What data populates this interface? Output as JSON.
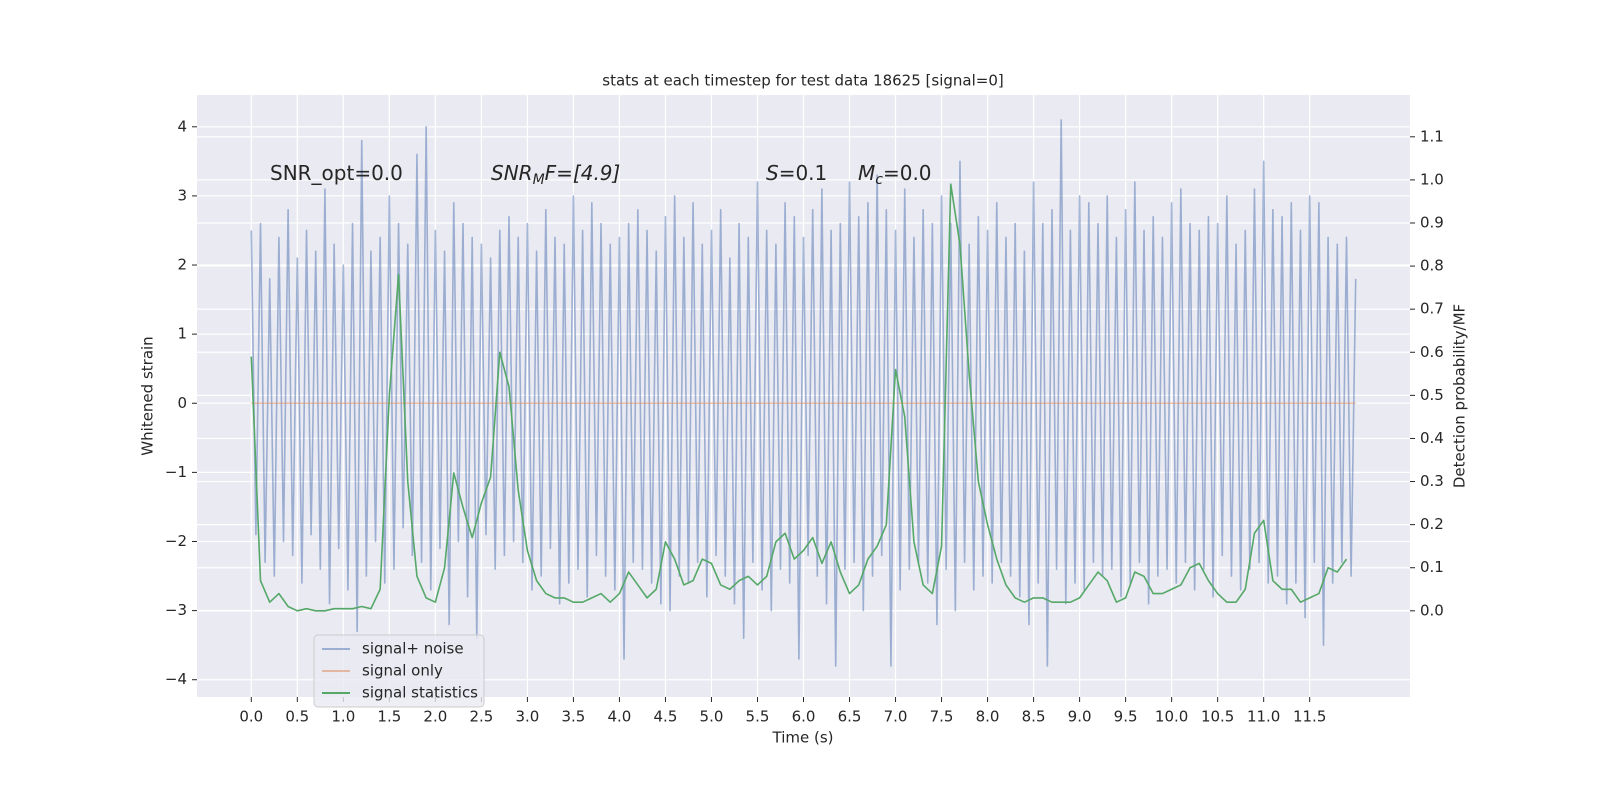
{
  "chart_data": {
    "type": "line",
    "title": "stats at each timestep for test data 18625 [signal=0]",
    "xlabel": "Time (s)",
    "ylabel": "Whitened strain",
    "y2label": "Detection probability/MF",
    "annotations": [
      [
        "SNR_opt=0.0"
      ],
      [
        "SNR",
        "M",
        "F=[4.9]"
      ],
      [
        "S",
        "=0.1"
      ],
      [
        "M",
        "c",
        "=0.0"
      ]
    ],
    "xlim": [
      -0.59,
      12.59
    ],
    "ylim": [
      -4.25,
      4.46
    ],
    "y2lim": [
      -0.2,
      1.197
    ],
    "xticks": [
      {
        "value": 0,
        "label": "0.0"
      },
      0.5,
      {
        "value": 1,
        "label": "1.0"
      },
      1.5,
      {
        "value": 2,
        "label": "2.0"
      },
      2.5,
      {
        "value": 3,
        "label": "3.0"
      },
      3.5,
      {
        "value": 4,
        "label": "4.0"
      },
      4.5,
      {
        "value": 5,
        "label": "5.0"
      },
      5.5,
      {
        "value": 6,
        "label": "6.0"
      },
      6.5,
      {
        "value": 7,
        "label": "7.0"
      },
      7.5,
      {
        "value": 8,
        "label": "8.0"
      },
      8.5,
      {
        "value": 9,
        "label": "9.0"
      },
      9.5,
      {
        "value": 10,
        "label": "10.0"
      },
      10.5,
      {
        "value": 11,
        "label": "11.0"
      },
      11.5
    ],
    "yticks": [
      {
        "value": -4,
        "label": "−4"
      },
      {
        "value": -3,
        "label": "−3"
      },
      {
        "value": -2,
        "label": "−2"
      },
      {
        "value": -1,
        "label": "−1"
      },
      0,
      1,
      2,
      3,
      4
    ],
    "y2ticks": [
      {
        "value": 0,
        "label": "0.0"
      },
      0.1,
      0.2,
      0.3,
      0.4,
      0.5,
      0.6,
      0.7,
      0.8,
      0.9,
      {
        "value": 1,
        "label": "1.0"
      },
      1.1
    ],
    "grid": true,
    "legend": "lower left",
    "series": [
      {
        "name": "signal+ noise",
        "color": "#4c72b0",
        "opacity": 0.5,
        "x": [
          0,
          0.05,
          0.1,
          0.15,
          0.2,
          0.25,
          0.3,
          0.35,
          0.4,
          0.45,
          0.5,
          0.55,
          0.6,
          0.65,
          0.7,
          0.75,
          0.8,
          0.85,
          0.9,
          0.95,
          1,
          1.05,
          1.1,
          1.15,
          1.2,
          1.25,
          1.3,
          1.35,
          1.4,
          1.45,
          1.5,
          1.55,
          1.6,
          1.65,
          1.7,
          1.75,
          1.8,
          1.85,
          1.9,
          1.95,
          2,
          2.05,
          2.1,
          2.15,
          2.2,
          2.25,
          2.3,
          2.35,
          2.4,
          2.45,
          2.5,
          2.55,
          2.6,
          2.65,
          2.7,
          2.75,
          2.8,
          2.85,
          2.9,
          2.95,
          3,
          3.05,
          3.1,
          3.15,
          3.2,
          3.25,
          3.3,
          3.35,
          3.4,
          3.45,
          3.5,
          3.55,
          3.6,
          3.65,
          3.7,
          3.75,
          3.8,
          3.85,
          3.9,
          3.95,
          4,
          4.05,
          4.1,
          4.15,
          4.2,
          4.25,
          4.3,
          4.35,
          4.4,
          4.45,
          4.5,
          4.55,
          4.6,
          4.65,
          4.7,
          4.75,
          4.8,
          4.85,
          4.9,
          4.95,
          5,
          5.05,
          5.1,
          5.15,
          5.2,
          5.25,
          5.3,
          5.35,
          5.4,
          5.45,
          5.5,
          5.55,
          5.6,
          5.65,
          5.7,
          5.75,
          5.8,
          5.85,
          5.9,
          5.95,
          6,
          6.05,
          6.1,
          6.15,
          6.2,
          6.25,
          6.3,
          6.35,
          6.4,
          6.45,
          6.5,
          6.55,
          6.6,
          6.65,
          6.7,
          6.75,
          6.8,
          6.85,
          6.9,
          6.95,
          7,
          7.05,
          7.1,
          7.15,
          7.2,
          7.25,
          7.3,
          7.35,
          7.4,
          7.45,
          7.5,
          7.55,
          7.6,
          7.65,
          7.7,
          7.75,
          7.8,
          7.85,
          7.9,
          7.95,
          8,
          8.05,
          8.1,
          8.15,
          8.2,
          8.25,
          8.3,
          8.35,
          8.4,
          8.45,
          8.5,
          8.55,
          8.6,
          8.65,
          8.7,
          8.75,
          8.8,
          8.85,
          8.9,
          8.95,
          9,
          9.05,
          9.1,
          9.15,
          9.2,
          9.25,
          9.3,
          9.35,
          9.4,
          9.45,
          9.5,
          9.55,
          9.6,
          9.65,
          9.7,
          9.75,
          9.8,
          9.85,
          9.9,
          9.95,
          10,
          10.05,
          10.1,
          10.15,
          10.2,
          10.25,
          10.3,
          10.35,
          10.4,
          10.45,
          10.5,
          10.55,
          10.6,
          10.65,
          10.7,
          10.75,
          10.8,
          10.85,
          10.9,
          10.95,
          11,
          11.05,
          11.1,
          11.15,
          11.2,
          11.25,
          11.3,
          11.35,
          11.4,
          11.45,
          11.5,
          11.55,
          11.6,
          11.65,
          11.7,
          11.75,
          11.8,
          11.85,
          11.9,
          11.95,
          12
        ],
        "values": [
          2.5,
          -1.9,
          2.6,
          -2.3,
          1.8,
          -2.5,
          2.4,
          -2.0,
          2.8,
          -2.2,
          2.1,
          -2.6,
          2.5,
          -1.9,
          2.2,
          -2.4,
          3.1,
          -2.9,
          2.3,
          -2.1,
          2.0,
          -2.7,
          2.6,
          -3.3,
          3.8,
          -2.5,
          2.2,
          -2.0,
          2.4,
          -2.6,
          3.0,
          -2.4,
          2.6,
          -1.8,
          2.3,
          -2.2,
          3.6,
          -2.3,
          4.0,
          -2.7,
          2.5,
          -2.1,
          2.2,
          -3.2,
          2.9,
          -2.0,
          2.6,
          -2.8,
          2.4,
          -3.4,
          2.3,
          -1.9,
          2.1,
          -2.4,
          2.5,
          -2.2,
          2.7,
          -2.0,
          2.4,
          -2.3,
          2.6,
          -2.7,
          2.2,
          -2.5,
          2.8,
          -2.1,
          2.4,
          -2.9,
          2.3,
          -2.6,
          3.0,
          -2.4,
          2.5,
          -2.8,
          2.9,
          -2.2,
          2.6,
          -2.5,
          2.3,
          -2.7,
          2.4,
          -3.7,
          2.6,
          -2.3,
          2.8,
          -2.4,
          2.5,
          -2.6,
          2.2,
          -2.9,
          2.7,
          -3.0,
          3.0,
          -2.5,
          2.4,
          -2.6,
          2.9,
          -2.3,
          2.3,
          -2.8,
          2.5,
          -2.2,
          2.8,
          -2.5,
          2.1,
          -2.9,
          2.6,
          -3.4,
          2.4,
          -2.3,
          3.2,
          -2.7,
          2.5,
          -3.0,
          2.3,
          -2.4,
          2.9,
          -2.6,
          2.7,
          -3.7,
          2.4,
          -2.2,
          2.8,
          -2.5,
          3.1,
          -2.9,
          2.5,
          -3.8,
          2.6,
          -2.4,
          3.2,
          -2.3,
          2.7,
          -3.0,
          2.9,
          -2.5,
          3.3,
          -2.2,
          2.8,
          -3.8,
          2.5,
          -2.7,
          3.1,
          -2.4,
          2.4,
          -2.3,
          2.8,
          -2.6,
          2.6,
          -3.2,
          3.0,
          -2.4,
          2.6,
          -3.0,
          3.5,
          -2.3,
          2.3,
          -2.7,
          2.7,
          -2.5,
          2.5,
          -2.6,
          2.9,
          -2.3,
          2.4,
          -2.5,
          2.6,
          -2.8,
          2.2,
          -3.2,
          3.2,
          -2.6,
          2.6,
          -3.8,
          2.8,
          -2.4,
          4.1,
          -2.9,
          2.5,
          -2.6,
          3.0,
          -2.7,
          2.9,
          -2.3,
          2.6,
          -2.5,
          3.0,
          -2.4,
          2.4,
          -2.8,
          2.8,
          -2.6,
          3.2,
          -2.3,
          2.5,
          -2.9,
          2.7,
          -2.5,
          2.4,
          -2.4,
          2.9,
          -2.6,
          3.1,
          -2.3,
          2.6,
          -2.7,
          2.5,
          -2.4,
          2.7,
          -2.8,
          2.6,
          -2.2,
          3.0,
          -2.5,
          2.3,
          -2.7,
          2.5,
          -2.4,
          3.1,
          -2.3,
          3.5,
          -2.6,
          2.8,
          -2.5,
          2.7,
          -2.9,
          2.9,
          -2.6,
          2.5,
          -3.1,
          3.0,
          -2.3,
          2.9,
          -3.5,
          2.4,
          -2.6,
          2.3,
          -2.3,
          2.4,
          -2.5,
          1.8
        ]
      },
      {
        "name": "signal only",
        "color": "#dd8452",
        "opacity": 0.5,
        "x": [
          0,
          12
        ],
        "values": [
          0,
          0
        ]
      },
      {
        "name": "signal statistics",
        "color": "#55a868",
        "axis": "y2",
        "x": [
          0,
          0.1,
          0.2,
          0.3,
          0.4,
          0.5,
          0.6,
          0.7,
          0.8,
          0.9,
          1,
          1.1,
          1.2,
          1.3,
          1.4,
          1.5,
          1.6,
          1.7,
          1.8,
          1.9,
          2,
          2.1,
          2.2,
          2.3,
          2.4,
          2.5,
          2.6,
          2.7,
          2.8,
          2.9,
          3,
          3.1,
          3.2,
          3.3,
          3.4,
          3.5,
          3.6,
          3.7,
          3.8,
          3.9,
          4,
          4.1,
          4.2,
          4.3,
          4.4,
          4.5,
          4.6,
          4.7,
          4.8,
          4.9,
          5,
          5.1,
          5.2,
          5.3,
          5.4,
          5.5,
          5.6,
          5.7,
          5.8,
          5.9,
          6,
          6.1,
          6.2,
          6.3,
          6.4,
          6.5,
          6.6,
          6.7,
          6.8,
          6.9,
          7,
          7.1,
          7.2,
          7.3,
          7.4,
          7.5,
          7.6,
          7.7,
          7.8,
          7.9,
          8,
          8.1,
          8.2,
          8.3,
          8.4,
          8.5,
          8.6,
          8.7,
          8.8,
          8.9,
          9,
          9.1,
          9.2,
          9.3,
          9.4,
          9.5,
          9.6,
          9.7,
          9.8,
          9.9,
          10,
          10.1,
          10.2,
          10.3,
          10.4,
          10.5,
          10.6,
          10.7,
          10.8,
          10.9,
          11,
          11.1,
          11.2,
          11.3,
          11.4,
          11.5,
          11.6,
          11.7,
          11.8,
          11.9
        ],
        "values": [
          0.59,
          0.07,
          0.02,
          0.04,
          0.01,
          0.0,
          0.005,
          0.0,
          0.0,
          0.005,
          0.005,
          0.005,
          0.01,
          0.005,
          0.05,
          0.5,
          0.78,
          0.3,
          0.08,
          0.03,
          0.02,
          0.1,
          0.32,
          0.24,
          0.17,
          0.25,
          0.31,
          0.6,
          0.52,
          0.28,
          0.14,
          0.07,
          0.04,
          0.03,
          0.03,
          0.02,
          0.02,
          0.03,
          0.04,
          0.02,
          0.04,
          0.09,
          0.06,
          0.03,
          0.05,
          0.16,
          0.12,
          0.06,
          0.07,
          0.12,
          0.11,
          0.06,
          0.05,
          0.07,
          0.08,
          0.06,
          0.08,
          0.16,
          0.18,
          0.12,
          0.14,
          0.17,
          0.11,
          0.16,
          0.09,
          0.04,
          0.06,
          0.12,
          0.15,
          0.2,
          0.56,
          0.45,
          0.16,
          0.06,
          0.04,
          0.15,
          0.99,
          0.85,
          0.55,
          0.3,
          0.2,
          0.12,
          0.06,
          0.03,
          0.02,
          0.03,
          0.03,
          0.02,
          0.02,
          0.02,
          0.03,
          0.06,
          0.09,
          0.07,
          0.02,
          0.03,
          0.09,
          0.08,
          0.04,
          0.04,
          0.05,
          0.06,
          0.1,
          0.11,
          0.07,
          0.04,
          0.02,
          0.02,
          0.05,
          0.18,
          0.21,
          0.07,
          0.05,
          0.05,
          0.02,
          0.03,
          0.04,
          0.1,
          0.09,
          0.12
        ]
      }
    ]
  }
}
